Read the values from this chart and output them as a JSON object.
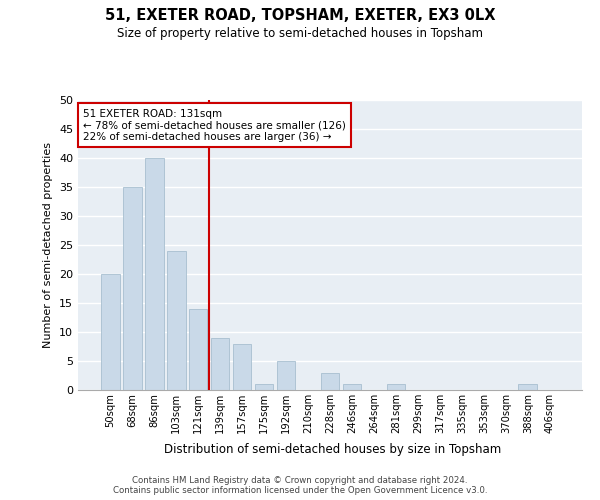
{
  "title": "51, EXETER ROAD, TOPSHAM, EXETER, EX3 0LX",
  "subtitle": "Size of property relative to semi-detached houses in Topsham",
  "xlabel": "Distribution of semi-detached houses by size in Topsham",
  "ylabel": "Number of semi-detached properties",
  "categories": [
    "50sqm",
    "68sqm",
    "86sqm",
    "103sqm",
    "121sqm",
    "139sqm",
    "157sqm",
    "175sqm",
    "192sqm",
    "210sqm",
    "228sqm",
    "246sqm",
    "264sqm",
    "281sqm",
    "299sqm",
    "317sqm",
    "335sqm",
    "353sqm",
    "370sqm",
    "388sqm",
    "406sqm"
  ],
  "values": [
    20,
    35,
    40,
    24,
    14,
    9,
    8,
    1,
    5,
    0,
    3,
    1,
    0,
    1,
    0,
    0,
    0,
    0,
    0,
    1,
    0
  ],
  "bar_color": "#c9d9e8",
  "bar_edge_color": "#a8bfd0",
  "property_line_index": 4,
  "annotation_line1": "51 EXETER ROAD: 131sqm",
  "annotation_line2": "← 78% of semi-detached houses are smaller (126)",
  "annotation_line3": "22% of semi-detached houses are larger (36) →",
  "annotation_box_color": "#cc0000",
  "ylim": [
    0,
    50
  ],
  "yticks": [
    0,
    5,
    10,
    15,
    20,
    25,
    30,
    35,
    40,
    45,
    50
  ],
  "footer_line1": "Contains HM Land Registry data © Crown copyright and database right 2024.",
  "footer_line2": "Contains public sector information licensed under the Open Government Licence v3.0.",
  "plot_bg_color": "#e8eef4"
}
